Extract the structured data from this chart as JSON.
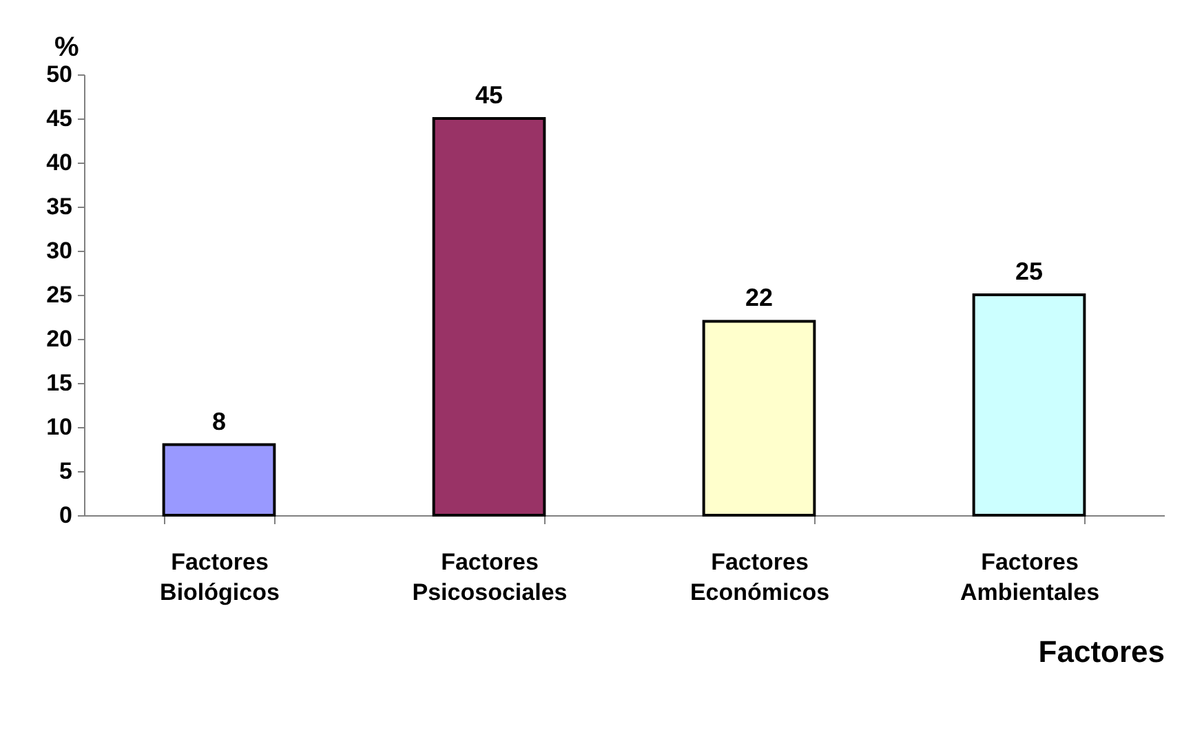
{
  "chart_data": {
    "type": "bar",
    "categories": [
      "Factores Biológicos",
      "Factores Psicosociales",
      "Factores Económicos",
      "Factores Ambientales"
    ],
    "values": [
      8,
      45,
      22,
      25
    ],
    "colors": [
      "#9999ff",
      "#993366",
      "#ffffcc",
      "#ccffff"
    ],
    "xlabel": "Factores",
    "ylabel": "%",
    "ylim": [
      0,
      50
    ],
    "yticks": [
      0,
      5,
      10,
      15,
      20,
      25,
      30,
      35,
      40,
      45,
      50
    ],
    "data_labels": true,
    "grid": false,
    "legend": false
  }
}
